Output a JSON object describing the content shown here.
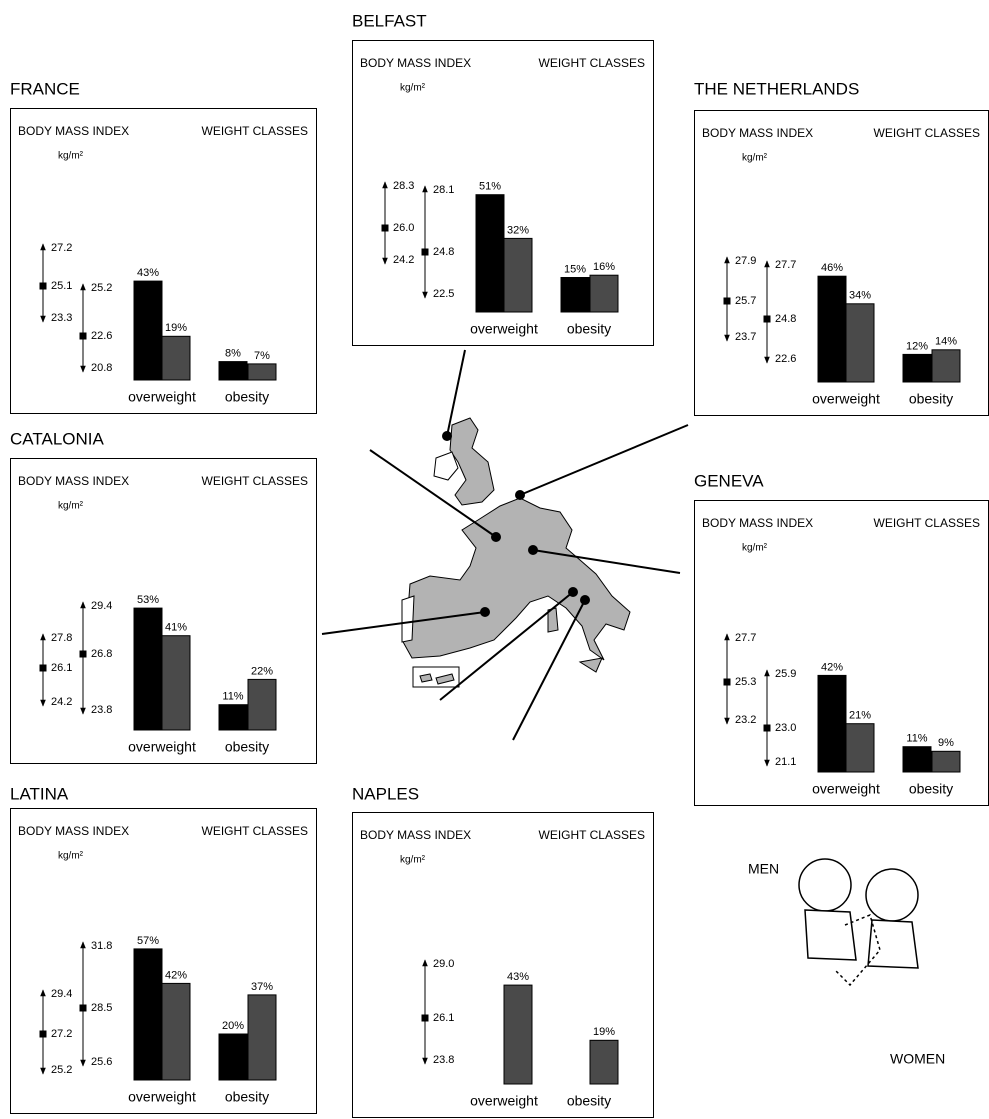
{
  "chart_data": [
    {
      "type": "bar",
      "title": "FRANCE",
      "bmi_title": "BODY MASS INDEX",
      "unit": "kg/m²",
      "bars_title": "WEIGHT CLASSES",
      "bmi": [
        {
          "high": 27.2,
          "mean": 25.1,
          "low": 23.3
        },
        {
          "high": 25.2,
          "mean": 22.6,
          "low": 20.8
        }
      ],
      "categories": [
        "overweight",
        "obesity"
      ],
      "series": [
        {
          "values": [
            43,
            8
          ],
          "value_labels": [
            "43%",
            "8%"
          ]
        },
        {
          "values": [
            19,
            7
          ],
          "value_labels": [
            "19%",
            "7%"
          ]
        }
      ]
    },
    {
      "type": "bar",
      "title": "BELFAST",
      "bmi_title": "BODY MASS INDEX",
      "unit": "kg/m²",
      "bars_title": "WEIGHT CLASSES",
      "bmi": [
        {
          "high": 28.3,
          "mean": 26,
          "mean_label": "26.0",
          "low": 24.2
        },
        {
          "high": 28.1,
          "mean": 24.8,
          "low": 22.5
        }
      ],
      "categories": [
        "overweight",
        "obesity"
      ],
      "series": [
        {
          "values": [
            51,
            15
          ],
          "value_labels": [
            "51%",
            "15%"
          ]
        },
        {
          "values": [
            32,
            16
          ],
          "value_labels": [
            "32%",
            "16%"
          ]
        }
      ]
    },
    {
      "type": "bar",
      "title": "THE NETHERLANDS",
      "bmi_title": "BODY MASS INDEX",
      "unit": "kg/m²",
      "bars_title": "WEIGHT CLASSES",
      "bmi": [
        {
          "high": 27.9,
          "mean": 25.7,
          "low": 23.7
        },
        {
          "high": 27.7,
          "mean": 24.8,
          "low": 22.6
        }
      ],
      "categories": [
        "overweight",
        "obesity"
      ],
      "series": [
        {
          "values": [
            46,
            12
          ],
          "value_labels": [
            "46%",
            "12%"
          ]
        },
        {
          "values": [
            34,
            14
          ],
          "value_labels": [
            "34%",
            "14%"
          ]
        }
      ]
    },
    {
      "type": "bar",
      "title": "CATALONIA",
      "bmi_title": "BODY MASS INDEX",
      "unit": "kg/m²",
      "bars_title": "WEIGHT CLASSES",
      "bmi": [
        {
          "high": 27.8,
          "mean": 26.1,
          "low": 24.2
        },
        {
          "high": 29.4,
          "mean": 26.8,
          "low": 23.8
        }
      ],
      "categories": [
        "overweight",
        "obesity"
      ],
      "series": [
        {
          "values": [
            53,
            11
          ],
          "value_labels": [
            "53%",
            "11%"
          ]
        },
        {
          "values": [
            41,
            22
          ],
          "value_labels": [
            "41%",
            "22%"
          ]
        }
      ]
    },
    {
      "type": "bar",
      "title": "GENEVA",
      "bmi_title": "BODY MASS INDEX",
      "unit": "kg/m²",
      "bars_title": "WEIGHT CLASSES",
      "bmi": [
        {
          "high": 27.7,
          "mean": 25.3,
          "low": 23.2
        },
        {
          "high": 25.9,
          "mean": 23,
          "mean_label": "23.0",
          "low": 21.1
        }
      ],
      "categories": [
        "overweight",
        "obesity"
      ],
      "series": [
        {
          "values": [
            42,
            11
          ],
          "value_labels": [
            "42%",
            "11%"
          ]
        },
        {
          "values": [
            21,
            9
          ],
          "value_labels": [
            "21%",
            "9%"
          ]
        }
      ]
    },
    {
      "type": "bar",
      "title": "LATINA",
      "bmi_title": "BODY MASS INDEX",
      "unit": "kg/m²",
      "bars_title": "WEIGHT CLASSES",
      "bmi": [
        {
          "high": 29.4,
          "mean": 27.2,
          "low": 25.2
        },
        {
          "high": 31.8,
          "mean": 28.5,
          "low": 25.6
        }
      ],
      "categories": [
        "overweight",
        "obesity"
      ],
      "series": [
        {
          "values": [
            57,
            20
          ],
          "value_labels": [
            "57%",
            "20%"
          ]
        },
        {
          "values": [
            42,
            37
          ],
          "value_labels": [
            "42%",
            "37%"
          ]
        }
      ]
    },
    {
      "type": "bar",
      "title": "NAPLES",
      "bmi_title": "BODY MASS INDEX",
      "unit": "kg/m²",
      "bars_title": "WEIGHT CLASSES",
      "bmi": [
        null,
        {
          "high": 29,
          "high_label": "29.0",
          "mean": 26.1,
          "low": 23.8
        }
      ],
      "categories": [
        "overweight",
        "obesity"
      ],
      "series": [
        {
          "values": [
            null,
            null
          ]
        },
        {
          "values": [
            43,
            19
          ],
          "value_labels": [
            "43%",
            "19%"
          ]
        }
      ]
    }
  ],
  "legend": {
    "series": [
      {
        "name": "MEN",
        "color": "#000000"
      },
      {
        "name": "WOMEN",
        "color": "#4a4a4a"
      }
    ]
  }
}
